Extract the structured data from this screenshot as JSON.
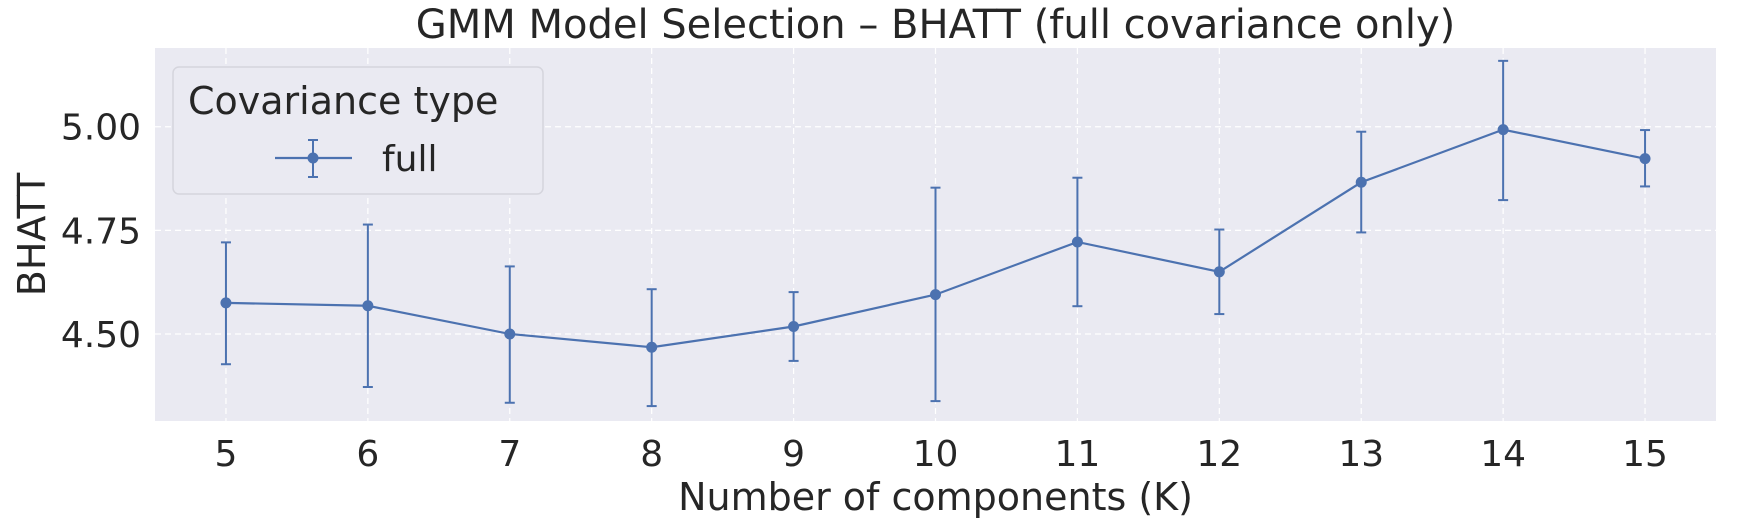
{
  "chart_data": {
    "type": "line",
    "title": "GMM Model Selection – BHATT (full covariance only)",
    "xlabel": "Number of components (K)",
    "ylabel": "BHATT",
    "xlim": [
      4.5,
      15.5
    ],
    "ylim": [
      4.29,
      5.19
    ],
    "xticks": [
      5,
      6,
      7,
      8,
      9,
      10,
      11,
      12,
      13,
      14,
      15
    ],
    "yticks": [
      4.5,
      4.75,
      5.0
    ],
    "ytick_labels": [
      "4.50",
      "4.75",
      "5.00"
    ],
    "grid": true,
    "legend": {
      "title": "Covariance type",
      "position": "top-left"
    },
    "series": [
      {
        "name": "full",
        "color": "#4c72b0",
        "x": [
          5,
          6,
          7,
          8,
          9,
          10,
          11,
          12,
          13,
          14,
          15
        ],
        "y": [
          4.575,
          4.568,
          4.5,
          4.468,
          4.518,
          4.595,
          4.722,
          4.65,
          4.866,
          4.993,
          4.923
        ],
        "yerr_low": [
          4.427,
          4.372,
          4.334,
          4.326,
          4.435,
          4.338,
          4.567,
          4.548,
          4.745,
          4.823,
          4.856
        ],
        "yerr_high": [
          4.721,
          4.764,
          4.663,
          4.608,
          4.601,
          4.853,
          4.877,
          4.752,
          4.988,
          5.159,
          4.992
        ]
      }
    ]
  }
}
